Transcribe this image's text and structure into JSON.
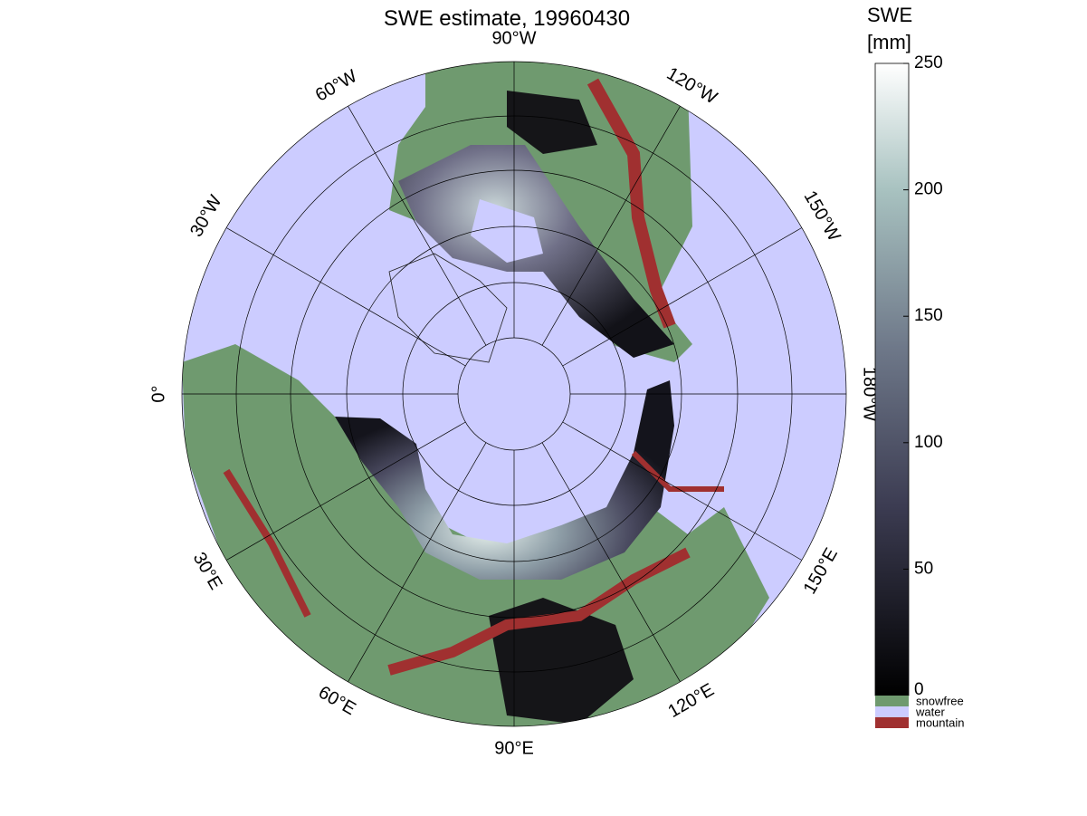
{
  "title": "SWE estimate, 19960430",
  "meridian_labels": [
    "90°W",
    "120°W",
    "150°W",
    "180°W",
    "150°E",
    "120°E",
    "90°E",
    "60°E",
    "30°E",
    "0°",
    "30°W",
    "60°W"
  ],
  "colorbar": {
    "label": [
      "SWE",
      "[mm]"
    ],
    "lim": [
      0,
      250
    ],
    "ticks": [
      0,
      50,
      100,
      150,
      200,
      250
    ]
  },
  "legend": [
    {
      "name": "snowfree",
      "color": "#6f9a6f"
    },
    {
      "name": "water",
      "color": "#ccccff"
    },
    {
      "name": "mountain",
      "color": "#a03030"
    }
  ]
}
